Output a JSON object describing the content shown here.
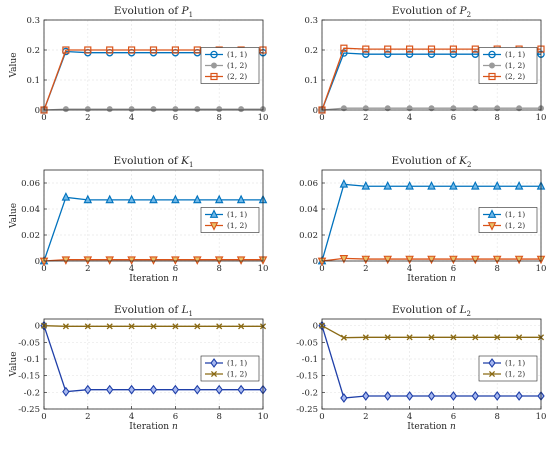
{
  "chart_data": [
    {
      "type": "line",
      "title": "Evolution of P₁",
      "title_main": "Evolution of",
      "title_sym": "P",
      "title_sub": "1",
      "xlabel_main": "",
      "xlabel_sym": "",
      "ylabel": "Value",
      "xlim": [
        0,
        10
      ],
      "ylim": [
        0,
        0.3
      ],
      "xticks": [
        "0",
        "2",
        "4",
        "6",
        "8",
        "10"
      ],
      "yticks": [
        "0",
        "0.1",
        "0.2",
        "0.3"
      ],
      "grid": true,
      "legend_position": "right",
      "x": [
        0,
        1,
        2,
        3,
        4,
        5,
        6,
        7,
        8,
        9,
        10
      ],
      "series": [
        {
          "name": "(1, 1)",
          "marker": "circle",
          "color": "#0072BD",
          "fill": "none",
          "values": [
            0,
            0.195,
            0.191,
            0.191,
            0.191,
            0.191,
            0.191,
            0.191,
            0.191,
            0.191,
            0.191
          ]
        },
        {
          "name": "(1, 2)",
          "marker": "dot",
          "color": "#9a9a9a",
          "fill": "#9a9a9a",
          "values": [
            0,
            0.003,
            0.003,
            0.003,
            0.003,
            0.003,
            0.003,
            0.003,
            0.003,
            0.003,
            0.003
          ]
        },
        {
          "name": "(2, 2)",
          "marker": "square",
          "color": "#D95319",
          "fill": "none",
          "values": [
            0,
            0.2,
            0.2,
            0.2,
            0.2,
            0.2,
            0.2,
            0.2,
            0.2,
            0.2,
            0.2
          ]
        }
      ]
    },
    {
      "type": "line",
      "title": "Evolution of P₂",
      "title_main": "Evolution of",
      "title_sym": "P",
      "title_sub": "2",
      "xlabel_main": "",
      "xlabel_sym": "",
      "ylabel": "",
      "xlim": [
        0,
        10
      ],
      "ylim": [
        0,
        0.3
      ],
      "xticks": [
        "0",
        "2",
        "4",
        "6",
        "8",
        "10"
      ],
      "yticks": [
        "0",
        "0.1",
        "0.2",
        "0.3"
      ],
      "grid": true,
      "legend_position": "right",
      "x": [
        0,
        1,
        2,
        3,
        4,
        5,
        6,
        7,
        8,
        9,
        10
      ],
      "series": [
        {
          "name": "(1, 1)",
          "marker": "circle",
          "color": "#0072BD",
          "fill": "none",
          "values": [
            0,
            0.19,
            0.186,
            0.186,
            0.186,
            0.186,
            0.186,
            0.186,
            0.186,
            0.186,
            0.186
          ]
        },
        {
          "name": "(1, 2)",
          "marker": "dot",
          "color": "#9a9a9a",
          "fill": "#9a9a9a",
          "values": [
            0,
            0.006,
            0.006,
            0.006,
            0.006,
            0.006,
            0.006,
            0.006,
            0.006,
            0.006,
            0.006
          ]
        },
        {
          "name": "(2, 2)",
          "marker": "square",
          "color": "#D95319",
          "fill": "none",
          "values": [
            0,
            0.206,
            0.203,
            0.203,
            0.203,
            0.203,
            0.203,
            0.203,
            0.203,
            0.203,
            0.203
          ]
        }
      ]
    },
    {
      "type": "line",
      "title": "Evolution of K₁",
      "title_main": "Evolution of",
      "title_sym": "K",
      "title_sub": "1",
      "xlabel_main": "Iteration",
      "xlabel_sym": "n",
      "ylabel": "Value",
      "xlim": [
        0,
        10
      ],
      "ylim": [
        0,
        0.07
      ],
      "xticks": [
        "0",
        "2",
        "4",
        "6",
        "8",
        "10"
      ],
      "yticks": [
        "0",
        "0.02",
        "0.04",
        "0.06"
      ],
      "grid": true,
      "legend_position": "right",
      "x": [
        0,
        1,
        2,
        3,
        4,
        5,
        6,
        7,
        8,
        9,
        10
      ],
      "series": [
        {
          "name": "(1, 1)",
          "marker": "triangle-up",
          "color": "#0072BD",
          "fill": "#6fb8e8",
          "values": [
            0,
            0.049,
            0.047,
            0.047,
            0.047,
            0.047,
            0.047,
            0.047,
            0.047,
            0.047,
            0.047
          ]
        },
        {
          "name": "(1, 2)",
          "marker": "triangle-down",
          "color": "#D95319",
          "fill": "#e8c26a",
          "values": [
            0,
            0.001,
            0.001,
            0.001,
            0.001,
            0.001,
            0.001,
            0.001,
            0.001,
            0.001,
            0.001
          ]
        }
      ]
    },
    {
      "type": "line",
      "title": "Evolution of K₂",
      "title_main": "Evolution of",
      "title_sym": "K",
      "title_sub": "2",
      "xlabel_main": "Iteration",
      "xlabel_sym": "n",
      "ylabel": "",
      "xlim": [
        0,
        10
      ],
      "ylim": [
        0,
        0.07
      ],
      "xticks": [
        "0",
        "2",
        "4",
        "6",
        "8",
        "10"
      ],
      "yticks": [
        "0",
        "0.02",
        "0.04",
        "0.06"
      ],
      "grid": true,
      "legend_position": "right",
      "x": [
        0,
        1,
        2,
        3,
        4,
        5,
        6,
        7,
        8,
        9,
        10
      ],
      "series": [
        {
          "name": "(1, 1)",
          "marker": "triangle-up",
          "color": "#0072BD",
          "fill": "#6fb8e8",
          "values": [
            0,
            0.059,
            0.0575,
            0.0575,
            0.0575,
            0.0575,
            0.0575,
            0.0575,
            0.0575,
            0.0575,
            0.0575
          ]
        },
        {
          "name": "(1, 2)",
          "marker": "triangle-down",
          "color": "#D95319",
          "fill": "#e8c26a",
          "values": [
            0,
            0.002,
            0.0015,
            0.0015,
            0.0015,
            0.0015,
            0.0015,
            0.0015,
            0.0015,
            0.0015,
            0.0015
          ]
        }
      ]
    },
    {
      "type": "line",
      "title": "Evolution of L₁",
      "title_main": "Evolution of",
      "title_sym": "L",
      "title_sub": "1",
      "xlabel_main": "Iteration",
      "xlabel_sym": "n",
      "ylabel": "Value",
      "xlim": [
        0,
        10
      ],
      "ylim": [
        -0.25,
        0.02
      ],
      "xticks": [
        "0",
        "2",
        "4",
        "6",
        "8",
        "10"
      ],
      "yticks": [
        "0",
        "-0.05",
        "-0.1",
        "-0.15",
        "-0.2",
        "-0.25"
      ],
      "grid": true,
      "legend_position": "right",
      "x": [
        0,
        1,
        2,
        3,
        4,
        5,
        6,
        7,
        8,
        9,
        10
      ],
      "series": [
        {
          "name": "(1, 1)",
          "marker": "diamond",
          "color": "#1f3fa8",
          "fill": "#a7b8f0",
          "values": [
            0,
            -0.198,
            -0.192,
            -0.192,
            -0.192,
            -0.192,
            -0.192,
            -0.192,
            -0.192,
            -0.192,
            -0.192
          ]
        },
        {
          "name": "(1, 2)",
          "marker": "x",
          "color": "#8a6a14",
          "fill": "none",
          "values": [
            0,
            -0.002,
            -0.002,
            -0.002,
            -0.002,
            -0.002,
            -0.002,
            -0.002,
            -0.002,
            -0.002,
            -0.002
          ]
        }
      ]
    },
    {
      "type": "line",
      "title": "Evolution of L₂",
      "title_main": "Evolution of",
      "title_sym": "L",
      "title_sub": "2",
      "xlabel_main": "Iteration",
      "xlabel_sym": "n",
      "ylabel": "",
      "xlim": [
        0,
        10
      ],
      "ylim": [
        -0.25,
        0.02
      ],
      "xticks": [
        "0",
        "2",
        "4",
        "6",
        "8",
        "10"
      ],
      "yticks": [
        "0",
        "-0.05",
        "-0.1",
        "-0.15",
        "-0.2",
        "-0.25"
      ],
      "grid": true,
      "legend_position": "right",
      "x": [
        0,
        1,
        2,
        3,
        4,
        5,
        6,
        7,
        8,
        9,
        10
      ],
      "series": [
        {
          "name": "(1, 1)",
          "marker": "diamond",
          "color": "#1f3fa8",
          "fill": "#a7b8f0",
          "values": [
            0,
            -0.217,
            -0.211,
            -0.211,
            -0.211,
            -0.211,
            -0.211,
            -0.211,
            -0.211,
            -0.211,
            -0.211
          ]
        },
        {
          "name": "(1, 2)",
          "marker": "x",
          "color": "#8a6a14",
          "fill": "none",
          "values": [
            0,
            -0.036,
            -0.035,
            -0.035,
            -0.035,
            -0.035,
            -0.035,
            -0.035,
            -0.035,
            -0.035,
            -0.035
          ]
        }
      ]
    }
  ]
}
